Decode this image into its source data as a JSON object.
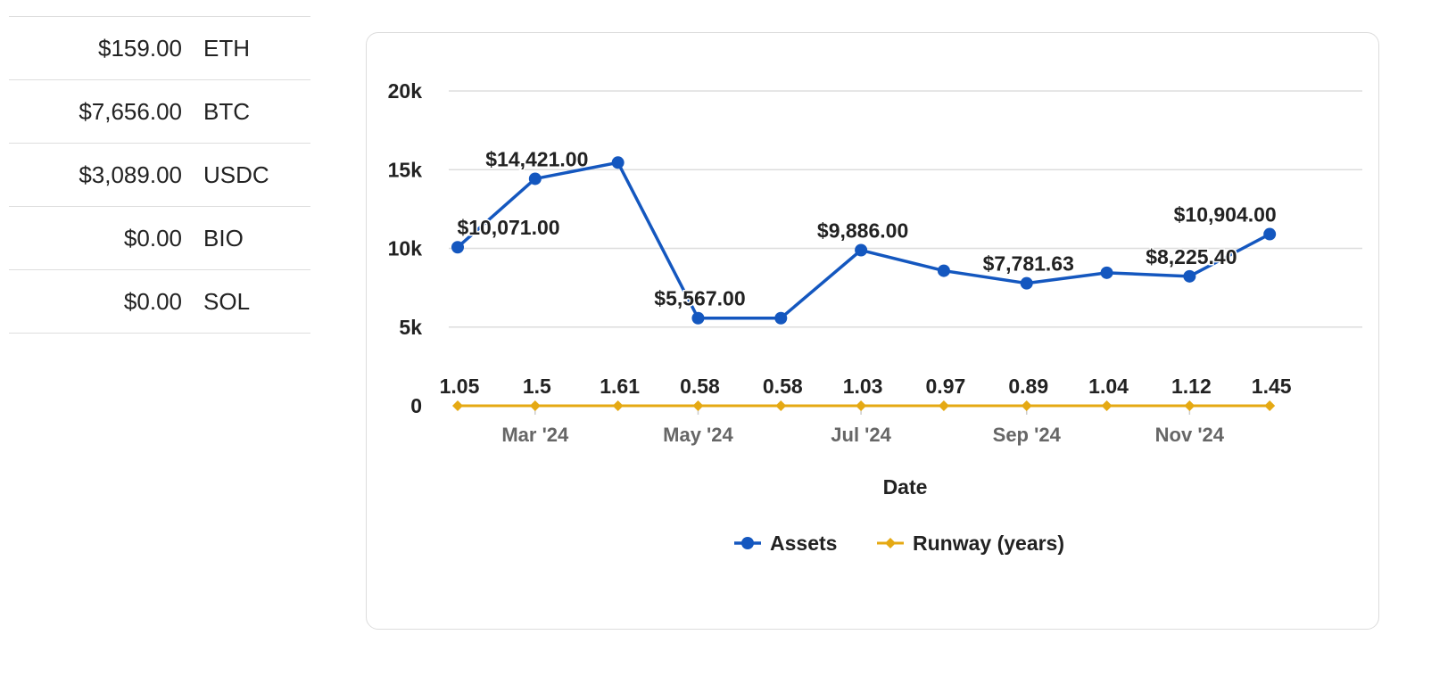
{
  "holdings": [
    {
      "amount": "$159.00",
      "symbol": "ETH"
    },
    {
      "amount": "$7,656.00",
      "symbol": "BTC"
    },
    {
      "amount": "$3,089.00",
      "symbol": "USDC"
    },
    {
      "amount": "$0.00",
      "symbol": "BIO"
    },
    {
      "amount": "$0.00",
      "symbol": "SOL"
    }
  ],
  "chart_data": {
    "type": "line",
    "xlabel": "Date",
    "ylabel": "",
    "ylim": [
      0,
      20000
    ],
    "yticks": [
      {
        "value": 0,
        "label": "0"
      },
      {
        "value": 5000,
        "label": "5k"
      },
      {
        "value": 10000,
        "label": "10k"
      },
      {
        "value": 15000,
        "label": "15k"
      },
      {
        "value": 20000,
        "label": "20k"
      }
    ],
    "xlim": [
      "2024-01-31",
      "2024-12-31"
    ],
    "xticks": [
      {
        "date": "2024-02-29",
        "label": "Mar '24"
      },
      {
        "date": "2024-04-30",
        "label": "May '24"
      },
      {
        "date": "2024-06-30",
        "label": "Jul '24"
      },
      {
        "date": "2024-08-31",
        "label": "Sep '24"
      },
      {
        "date": "2024-10-31",
        "label": "Nov '24"
      }
    ],
    "grid": true,
    "legend_position": "bottom",
    "x": [
      "2024-01-31",
      "2024-02-29",
      "2024-03-31",
      "2024-04-30",
      "2024-05-31",
      "2024-06-30",
      "2024-07-31",
      "2024-08-31",
      "2024-09-30",
      "2024-10-31",
      "2024-11-30"
    ],
    "series": [
      {
        "name": "Assets",
        "color": "#1457bf",
        "marker": "circle",
        "values": [
          10071,
          14421,
          15450,
          5567,
          5567,
          9886,
          8580,
          7781.63,
          8450,
          8225.4,
          10904
        ],
        "labels": [
          "$10,071.00",
          "$14,421.00",
          "",
          "$5,567.00",
          "",
          "$9,886.00",
          "",
          "$7,781.63",
          "",
          "$8,225.40",
          "$10,904.00"
        ]
      },
      {
        "name": "Runway (years)",
        "color": "#e5a913",
        "marker": "diamond",
        "values": [
          1.05,
          1.5,
          1.61,
          0.58,
          0.58,
          1.03,
          0.97,
          0.89,
          1.04,
          1.12,
          1.45
        ],
        "labels": [
          "1.05",
          "1.5",
          "1.61",
          "0.58",
          "0.58",
          "1.03",
          "0.97",
          "0.89",
          "1.04",
          "1.12",
          "1.45"
        ]
      }
    ]
  }
}
